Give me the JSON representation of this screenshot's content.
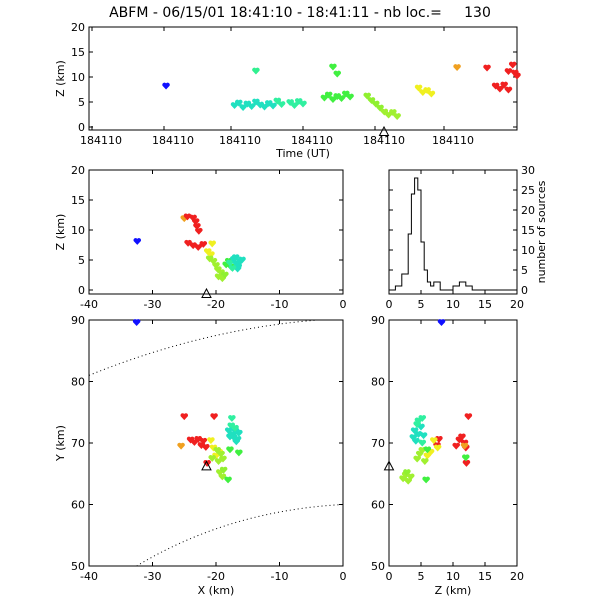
{
  "title": "ABFM - 06/15/01 18:41:10 - 18:41:11 - nb loc.=     130",
  "chart_data": [
    {
      "panel": "time-height",
      "type": "scatter",
      "xlabel": "Time (UT)",
      "ylabel": "Z (km)",
      "ylim": [
        0,
        20
      ],
      "yticks": [
        0,
        5,
        10,
        15,
        20
      ],
      "xtick_labels": [
        "184110",
        "184110",
        "184110",
        "184110",
        "184110",
        "184110"
      ],
      "marker": "triangle at Time ≈ 18:41:10.6, Z = 0",
      "points": [
        {
          "t": 0.18,
          "z": 8.2,
          "c": "#1010ff"
        },
        {
          "t": 0.39,
          "z": 11.2,
          "c": "#30f090"
        },
        {
          "t": 0.34,
          "z": 4.3,
          "c": "#20e0c0"
        },
        {
          "t": 0.35,
          "z": 4.8,
          "c": "#20e0c0"
        },
        {
          "t": 0.36,
          "z": 3.9,
          "c": "#20e0c0"
        },
        {
          "t": 0.37,
          "z": 4.6,
          "c": "#20e0c0"
        },
        {
          "t": 0.38,
          "z": 4.1,
          "c": "#20e0c0"
        },
        {
          "t": 0.39,
          "z": 5.0,
          "c": "#20e0c0"
        },
        {
          "t": 0.4,
          "z": 4.4,
          "c": "#20e0c0"
        },
        {
          "t": 0.41,
          "z": 4.0,
          "c": "#20e0c0"
        },
        {
          "t": 0.42,
          "z": 4.7,
          "c": "#20e0c0"
        },
        {
          "t": 0.43,
          "z": 4.2,
          "c": "#20e0c0"
        },
        {
          "t": 0.44,
          "z": 5.2,
          "c": "#30f0a0"
        },
        {
          "t": 0.45,
          "z": 4.5,
          "c": "#30f0a0"
        },
        {
          "t": 0.47,
          "z": 4.9,
          "c": "#30f0a0"
        },
        {
          "t": 0.48,
          "z": 4.3,
          "c": "#30f0a0"
        },
        {
          "t": 0.49,
          "z": 5.1,
          "c": "#30f0a0"
        },
        {
          "t": 0.5,
          "z": 4.6,
          "c": "#30f0a0"
        },
        {
          "t": 0.57,
          "z": 12.0,
          "c": "#40f040"
        },
        {
          "t": 0.58,
          "z": 10.6,
          "c": "#40f040"
        },
        {
          "t": 0.55,
          "z": 5.8,
          "c": "#40f040"
        },
        {
          "t": 0.56,
          "z": 6.4,
          "c": "#40f040"
        },
        {
          "t": 0.57,
          "z": 5.5,
          "c": "#40f040"
        },
        {
          "t": 0.58,
          "z": 6.1,
          "c": "#40f040"
        },
        {
          "t": 0.59,
          "z": 5.7,
          "c": "#40f040"
        },
        {
          "t": 0.6,
          "z": 6.6,
          "c": "#40f040"
        },
        {
          "t": 0.61,
          "z": 6.0,
          "c": "#40f040"
        },
        {
          "t": 0.65,
          "z": 6.2,
          "c": "#90f030"
        },
        {
          "t": 0.66,
          "z": 5.3,
          "c": "#90f030"
        },
        {
          "t": 0.67,
          "z": 4.6,
          "c": "#90f030"
        },
        {
          "t": 0.68,
          "z": 3.8,
          "c": "#90f030"
        },
        {
          "t": 0.69,
          "z": 3.0,
          "c": "#a0f030"
        },
        {
          "t": 0.7,
          "z": 2.4,
          "c": "#a0f030"
        },
        {
          "t": 0.71,
          "z": 2.9,
          "c": "#a0f030"
        },
        {
          "t": 0.72,
          "z": 2.1,
          "c": "#a0f030"
        },
        {
          "t": 0.77,
          "z": 7.8,
          "c": "#f0f020"
        },
        {
          "t": 0.78,
          "z": 6.9,
          "c": "#f0f020"
        },
        {
          "t": 0.79,
          "z": 7.3,
          "c": "#f0f020"
        },
        {
          "t": 0.8,
          "z": 6.6,
          "c": "#f0f020"
        },
        {
          "t": 0.86,
          "z": 11.9,
          "c": "#f0a020"
        },
        {
          "t": 0.93,
          "z": 11.8,
          "c": "#f02020"
        },
        {
          "t": 0.95,
          "z": 8.2,
          "c": "#f02020"
        },
        {
          "t": 0.96,
          "z": 7.6,
          "c": "#f02020"
        },
        {
          "t": 0.97,
          "z": 8.4,
          "c": "#f02020"
        },
        {
          "t": 0.98,
          "z": 7.4,
          "c": "#f02020"
        },
        {
          "t": 0.98,
          "z": 11.1,
          "c": "#f02020"
        },
        {
          "t": 0.99,
          "z": 12.4,
          "c": "#f02020"
        },
        {
          "t": 0.995,
          "z": 10.8,
          "c": "#f02020"
        },
        {
          "t": 1.0,
          "z": 10.2,
          "c": "#f02020"
        }
      ]
    },
    {
      "panel": "x-z",
      "type": "scatter",
      "ylabel": "Z (km)",
      "xlim": [
        -40,
        0
      ],
      "ylim": [
        0,
        20
      ],
      "xticks": [
        -40,
        -30,
        -20,
        -10,
        0
      ],
      "yticks": [
        0,
        5,
        10,
        15,
        20
      ],
      "marker": {
        "x": -21.5,
        "z": 0
      },
      "points": [
        {
          "x": -32.4,
          "z": 8.1,
          "c": "#1010ff"
        },
        {
          "x": -25.0,
          "z": 11.9,
          "c": "#f0a020"
        },
        {
          "x": -24.5,
          "z": 12.2,
          "c": "#f02020"
        },
        {
          "x": -23.6,
          "z": 12.0,
          "c": "#f02020"
        },
        {
          "x": -23.2,
          "z": 11.4,
          "c": "#f02020"
        },
        {
          "x": -23.0,
          "z": 10.6,
          "c": "#f02020"
        },
        {
          "x": -22.7,
          "z": 9.8,
          "c": "#f02020"
        },
        {
          "x": -24.4,
          "z": 7.8,
          "c": "#f02020"
        },
        {
          "x": -23.6,
          "z": 7.4,
          "c": "#f02020"
        },
        {
          "x": -22.8,
          "z": 7.1,
          "c": "#f02020"
        },
        {
          "x": -22.0,
          "z": 7.6,
          "c": "#f02020"
        },
        {
          "x": -20.6,
          "z": 7.7,
          "c": "#f0f020"
        },
        {
          "x": -21.3,
          "z": 6.4,
          "c": "#f0f020"
        },
        {
          "x": -20.8,
          "z": 5.9,
          "c": "#f0f020"
        },
        {
          "x": -21.0,
          "z": 5.2,
          "c": "#a0f030"
        },
        {
          "x": -20.4,
          "z": 4.8,
          "c": "#a0f030"
        },
        {
          "x": -20.0,
          "z": 4.1,
          "c": "#a0f030"
        },
        {
          "x": -19.7,
          "z": 3.4,
          "c": "#a0f030"
        },
        {
          "x": -19.2,
          "z": 2.9,
          "c": "#a0f030"
        },
        {
          "x": -19.6,
          "z": 2.2,
          "c": "#a0f030"
        },
        {
          "x": -19.0,
          "z": 1.9,
          "c": "#a0f030"
        },
        {
          "x": -18.6,
          "z": 2.5,
          "c": "#90f030"
        },
        {
          "x": -18.4,
          "z": 4.2,
          "c": "#40f040"
        },
        {
          "x": -18.0,
          "z": 4.8,
          "c": "#40f040"
        },
        {
          "x": -17.6,
          "z": 3.8,
          "c": "#40f040"
        },
        {
          "x": -17.8,
          "z": 4.5,
          "c": "#30f0a0"
        },
        {
          "x": -17.2,
          "z": 5.1,
          "c": "#20e0c0"
        },
        {
          "x": -16.8,
          "z": 4.4,
          "c": "#20e0c0"
        },
        {
          "x": -16.5,
          "z": 3.9,
          "c": "#20e0c0"
        },
        {
          "x": -16.2,
          "z": 4.7,
          "c": "#20e0c0"
        },
        {
          "x": -16.9,
          "z": 5.4,
          "c": "#20e0c0"
        },
        {
          "x": -15.9,
          "z": 5.0,
          "c": "#20e0c0"
        },
        {
          "x": -16.6,
          "z": 3.5,
          "c": "#20e0c0"
        },
        {
          "x": -17.4,
          "z": 3.6,
          "c": "#30f0a0"
        }
      ]
    },
    {
      "panel": "height-histogram",
      "type": "line",
      "ylabel": "number of sources",
      "xlim": [
        0,
        20
      ],
      "ylim": [
        0,
        30
      ],
      "xticks": [
        0,
        5,
        10,
        15,
        20
      ],
      "yticks": [
        0,
        5,
        10,
        15,
        20,
        25,
        30
      ],
      "bins": [
        0,
        1,
        2,
        3,
        3.5,
        4,
        4.5,
        5,
        5.5,
        6,
        6.5,
        7,
        8,
        9,
        10,
        11,
        12,
        13,
        14,
        15,
        20
      ],
      "counts": [
        0,
        1,
        4,
        14,
        24,
        28,
        25,
        12,
        5,
        2,
        1,
        2,
        0,
        0,
        1,
        2,
        1,
        0,
        0,
        0
      ]
    },
    {
      "panel": "x-y",
      "type": "scatter",
      "xlabel": "X (km)",
      "ylabel": "Y (km)",
      "xlim": [
        -40,
        0
      ],
      "ylim": [
        50,
        90
      ],
      "xticks": [
        -40,
        -30,
        -20,
        -10,
        0
      ],
      "yticks": [
        50,
        60,
        70,
        80,
        90
      ],
      "marker": {
        "x": -21.5,
        "y": 66.2
      },
      "range_rings": "dotted",
      "points": [
        {
          "x": -32.5,
          "y": 89.6,
          "c": "#1010ff"
        },
        {
          "x": -25.0,
          "y": 74.3,
          "c": "#f02020"
        },
        {
          "x": -24.0,
          "y": 70.5,
          "c": "#f02020"
        },
        {
          "x": -23.4,
          "y": 70.1,
          "c": "#f02020"
        },
        {
          "x": -22.8,
          "y": 70.6,
          "c": "#f02020"
        },
        {
          "x": -22.3,
          "y": 69.6,
          "c": "#f02020"
        },
        {
          "x": -22.0,
          "y": 70.3,
          "c": "#f02020"
        },
        {
          "x": -21.6,
          "y": 69.3,
          "c": "#f02020"
        },
        {
          "x": -20.3,
          "y": 74.3,
          "c": "#f02020"
        },
        {
          "x": -21.4,
          "y": 66.7,
          "c": "#f02020"
        },
        {
          "x": -25.5,
          "y": 69.5,
          "c": "#f0a020"
        },
        {
          "x": -20.8,
          "y": 70.4,
          "c": "#f0f020"
        },
        {
          "x": -20.4,
          "y": 69.2,
          "c": "#f0f020"
        },
        {
          "x": -19.5,
          "y": 68.5,
          "c": "#f0f020"
        },
        {
          "x": -20.0,
          "y": 67.9,
          "c": "#f0f020"
        },
        {
          "x": -19.8,
          "y": 68.8,
          "c": "#a0f030"
        },
        {
          "x": -19.2,
          "y": 68.2,
          "c": "#a0f030"
        },
        {
          "x": -18.9,
          "y": 67.4,
          "c": "#a0f030"
        },
        {
          "x": -19.6,
          "y": 67.0,
          "c": "#a0f030"
        },
        {
          "x": -19.4,
          "y": 65.2,
          "c": "#a0f030"
        },
        {
          "x": -19.0,
          "y": 64.5,
          "c": "#a0f030"
        },
        {
          "x": -18.8,
          "y": 65.6,
          "c": "#90f030"
        },
        {
          "x": -20.6,
          "y": 67.5,
          "c": "#a0f030"
        },
        {
          "x": -18.1,
          "y": 64.0,
          "c": "#40f040"
        },
        {
          "x": -17.8,
          "y": 68.9,
          "c": "#40f040"
        },
        {
          "x": -16.4,
          "y": 68.4,
          "c": "#40f040"
        },
        {
          "x": -17.6,
          "y": 72.8,
          "c": "#30f0a0"
        },
        {
          "x": -18.0,
          "y": 72.0,
          "c": "#20e0c0"
        },
        {
          "x": -17.4,
          "y": 71.4,
          "c": "#20e0c0"
        },
        {
          "x": -16.9,
          "y": 71.9,
          "c": "#20e0c0"
        },
        {
          "x": -17.2,
          "y": 70.9,
          "c": "#20e0c0"
        },
        {
          "x": -16.6,
          "y": 70.6,
          "c": "#20e0c0"
        },
        {
          "x": -16.4,
          "y": 71.6,
          "c": "#20e0c0"
        },
        {
          "x": -17.8,
          "y": 71.0,
          "c": "#20e0c0"
        },
        {
          "x": -16.8,
          "y": 70.2,
          "c": "#20e0c0"
        },
        {
          "x": -17.0,
          "y": 72.4,
          "c": "#30f0a0"
        },
        {
          "x": -17.5,
          "y": 74.0,
          "c": "#30f0a0"
        }
      ]
    },
    {
      "panel": "z-y",
      "type": "scatter",
      "xlabel": "Z (km)",
      "xlim": [
        0,
        20
      ],
      "ylim": [
        50,
        90
      ],
      "xticks": [
        0,
        5,
        10,
        15,
        20
      ],
      "yticks": [
        50,
        60,
        70,
        80,
        90
      ],
      "marker": {
        "z": 0,
        "y": 66.2
      },
      "points": [
        {
          "z": 8.2,
          "y": 89.6,
          "c": "#1010ff"
        },
        {
          "z": 12.4,
          "y": 74.3,
          "c": "#f02020"
        },
        {
          "z": 11.0,
          "y": 70.5,
          "c": "#f02020"
        },
        {
          "z": 11.8,
          "y": 70.0,
          "c": "#f02020"
        },
        {
          "z": 10.5,
          "y": 69.5,
          "c": "#f02020"
        },
        {
          "z": 12.0,
          "y": 69.2,
          "c": "#f02020"
        },
        {
          "z": 11.4,
          "y": 71.0,
          "c": "#f02020"
        },
        {
          "z": 7.8,
          "y": 70.6,
          "c": "#f02020"
        },
        {
          "z": 7.5,
          "y": 69.6,
          "c": "#f02020"
        },
        {
          "z": 12.1,
          "y": 66.7,
          "c": "#f02020"
        },
        {
          "z": 11.8,
          "y": 69.5,
          "c": "#f0a020"
        },
        {
          "z": 7.0,
          "y": 70.4,
          "c": "#f0f020"
        },
        {
          "z": 7.6,
          "y": 69.2,
          "c": "#f0f020"
        },
        {
          "z": 6.5,
          "y": 68.5,
          "c": "#f0f020"
        },
        {
          "z": 6.0,
          "y": 67.9,
          "c": "#f0f020"
        },
        {
          "z": 5.2,
          "y": 68.8,
          "c": "#a0f030"
        },
        {
          "z": 4.8,
          "y": 68.2,
          "c": "#a0f030"
        },
        {
          "z": 4.4,
          "y": 67.4,
          "c": "#a0f030"
        },
        {
          "z": 5.6,
          "y": 67.0,
          "c": "#a0f030"
        },
        {
          "z": 2.6,
          "y": 64.8,
          "c": "#a0f030"
        },
        {
          "z": 2.2,
          "y": 64.2,
          "c": "#a0f030"
        },
        {
          "z": 3.0,
          "y": 63.8,
          "c": "#a0f030"
        },
        {
          "z": 2.8,
          "y": 65.2,
          "c": "#90f030"
        },
        {
          "z": 3.4,
          "y": 64.5,
          "c": "#a0f030"
        },
        {
          "z": 5.8,
          "y": 64.0,
          "c": "#40f040"
        },
        {
          "z": 12.0,
          "y": 67.6,
          "c": "#40f040"
        },
        {
          "z": 6.0,
          "y": 68.9,
          "c": "#40f040"
        },
        {
          "z": 4.0,
          "y": 72.0,
          "c": "#20e0c0"
        },
        {
          "z": 4.6,
          "y": 71.4,
          "c": "#20e0c0"
        },
        {
          "z": 5.0,
          "y": 72.6,
          "c": "#20e0c0"
        },
        {
          "z": 3.8,
          "y": 70.9,
          "c": "#20e0c0"
        },
        {
          "z": 4.2,
          "y": 70.3,
          "c": "#20e0c0"
        },
        {
          "z": 5.4,
          "y": 71.2,
          "c": "#20e0c0"
        },
        {
          "z": 4.4,
          "y": 73.0,
          "c": "#30f0a0"
        },
        {
          "z": 5.2,
          "y": 70.0,
          "c": "#30f0a0"
        },
        {
          "z": 4.6,
          "y": 73.6,
          "c": "#30f0a0"
        },
        {
          "z": 5.2,
          "y": 74.0,
          "c": "#30f0a0"
        }
      ]
    }
  ]
}
